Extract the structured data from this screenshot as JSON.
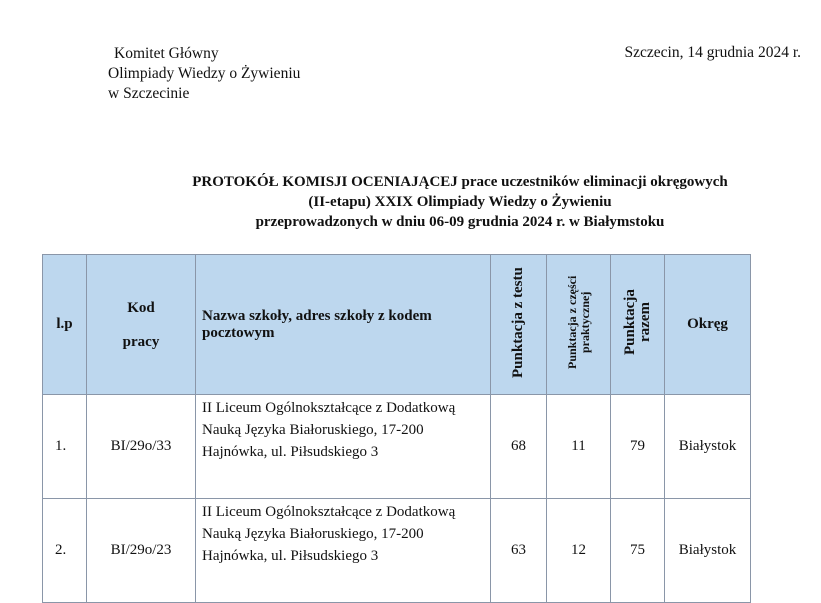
{
  "header": {
    "org_lines": [
      "Komitet Główny",
      "Olimpiady Wiedzy o Żywieniu",
      "w Szczecinie"
    ],
    "place_date": "Szczecin, 14 grudnia 2024 r."
  },
  "title_lines": [
    "PROTOKÓŁ KOMISJI OCENIAJĄCEJ prace uczestników eliminacji okręgowych",
    "(II-etapu) XXIX Olimpiady Wiedzy o Żywieniu",
    "przeprowadzonych w dniu 06-09 grudnia 2024 r.  w Białymstoku"
  ],
  "table": {
    "header_bg": "#bdd7ee",
    "columns": {
      "lp": "l.p",
      "kod": "Kod pracy",
      "nazwa": "Nazwa szkoły, adres szkoły z kodem pocztowym",
      "test": "Punktacja z testu",
      "praktyczna": "Punktacja z części praktycznej",
      "razem": "Punktacja razem",
      "okreg": "Okręg"
    },
    "rows": [
      {
        "lp": "1.",
        "kod": "BI/29o/33",
        "nazwa": "II Liceum Ogólnokształcące z Dodatkową Nauką Języka Białoruskiego, 17-200 Hajnówka,  ul. Piłsudskiego 3",
        "test": "68",
        "praktyczna": "11",
        "razem": "79",
        "okreg": "Białystok"
      },
      {
        "lp": "2.",
        "kod": "BI/29o/23",
        "nazwa": "II Liceum Ogólnokształcące z Dodatkową Nauką Języka Białoruskiego, 17-200 Hajnówka,   ul. Piłsudskiego 3",
        "test": "63",
        "praktyczna": "12",
        "razem": "75",
        "okreg": "Białystok"
      }
    ]
  }
}
